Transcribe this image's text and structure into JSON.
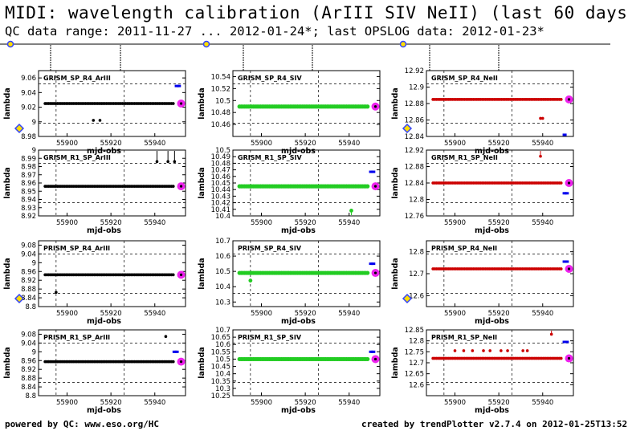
{
  "header": {
    "title": "MIDI: wavelength calibration (ArIII SIV NeII) (last 60 days)",
    "subtitle": "QC data range: 2011-11-27 ... 2012-01-24*; last OPSLOG data: 2012-01-23*"
  },
  "footer": {
    "left": "powered by QC: www.eso.org/HC",
    "right": "created by trendPlotter v2.7.4 on 2012-01-25T13:52:09"
  },
  "colors": {
    "arIII": "#000000",
    "siv": "#22cc22",
    "neII": "#cc0000",
    "latest": "#ee22ee",
    "outlier": "#0000ee",
    "marker": "#3344ff"
  },
  "chart_data": [
    {
      "type": "scatter",
      "title": "GRISM_SP_R4_ArIII",
      "xlabel": "mjd-obs",
      "ylabel": "lambda",
      "xlim": [
        55887,
        55954
      ],
      "ylim": [
        8.98,
        9.07
      ],
      "yticks": [
        "8.98",
        "9",
        "9.02",
        "9.04",
        "9.06"
      ],
      "xticks": [
        "55900",
        "55920",
        "55940"
      ],
      "level": 9.025,
      "latest": [
        55952,
        9.025
      ],
      "outliers": [
        [
          55950,
          9.049
        ],
        [
          55951,
          9.049
        ]
      ],
      "extras": [
        [
          55912,
          9.002
        ],
        [
          55915,
          9.002
        ]
      ],
      "color": "#000000"
    },
    {
      "type": "scatter",
      "title": "GRISM_SP_R4_SIV",
      "xlabel": "mjd-obs",
      "ylabel": "lambda",
      "xlim": [
        55887,
        55954
      ],
      "ylim": [
        10.44,
        10.55
      ],
      "yticks": [
        "10.46",
        "10.48",
        "10.5",
        "10.52",
        "10.54"
      ],
      "xticks": [
        "55900",
        "55920",
        "55940"
      ],
      "level": 10.49,
      "latest": [
        55952,
        10.49
      ],
      "outliers": [],
      "extras": [],
      "color": "#22cc22"
    },
    {
      "type": "scatter",
      "title": "GRISM_SP_R4_NeII",
      "xlabel": "mjd-obs",
      "ylabel": "lambda",
      "xlim": [
        55887,
        55954
      ],
      "ylim": [
        12.84,
        12.92
      ],
      "yticks": [
        "12.84",
        "12.86",
        "12.88",
        "12.9",
        "12.92"
      ],
      "xticks": [
        "55900",
        "55920",
        "55940"
      ],
      "level": 12.885,
      "latest": [
        55952,
        12.885
      ],
      "outliers": [
        [
          55950,
          12.842
        ]
      ],
      "extras": [
        [
          55939,
          12.862
        ],
        [
          55940,
          12.862
        ]
      ],
      "color": "#cc0000"
    },
    {
      "type": "scatter",
      "title": "GRISM_R1_SP_ArIII",
      "xlabel": "mjd-obs",
      "ylabel": "lambda",
      "xlim": [
        55887,
        55954
      ],
      "ylim": [
        8.92,
        9.0
      ],
      "yticks": [
        "8.92",
        "8.93",
        "8.94",
        "8.95",
        "8.96",
        "8.97",
        "8.98",
        "8.99",
        "9"
      ],
      "xticks": [
        "55900",
        "55920",
        "55940"
      ],
      "level": 8.956,
      "latest": [
        55952,
        8.956
      ],
      "outliers": [],
      "extras": [
        [
          55941,
          8.986
        ],
        [
          55946,
          8.986
        ],
        [
          55949,
          8.986
        ]
      ],
      "color": "#000000"
    },
    {
      "type": "scatter",
      "title": "GRISM_R1_SP_SIV",
      "xlabel": "mjd-obs",
      "ylabel": "lambda",
      "xlim": [
        55887,
        55954
      ],
      "ylim": [
        10.4,
        10.5
      ],
      "yticks": [
        "10.4",
        "10.41",
        "10.42",
        "10.43",
        "10.44",
        "10.45",
        "10.46",
        "10.47",
        "10.48",
        "10.49",
        "10.5"
      ],
      "xticks": [
        "55900",
        "55920",
        "55940"
      ],
      "level": 10.445,
      "latest": [
        55952,
        10.445
      ],
      "outliers": [
        [
          55950,
          10.467
        ],
        [
          55951,
          10.467
        ]
      ],
      "extras": [
        [
          55941,
          10.408
        ]
      ],
      "color": "#22cc22"
    },
    {
      "type": "scatter",
      "title": "GRISM_R1_SP_NeII",
      "xlabel": "mjd-obs",
      "ylabel": "lambda",
      "xlim": [
        55887,
        55954
      ],
      "ylim": [
        12.76,
        12.92
      ],
      "yticks": [
        "12.76",
        "12.8",
        "12.84",
        "12.88",
        "12.92"
      ],
      "xticks": [
        "55900",
        "55920",
        "55940"
      ],
      "level": 12.84,
      "latest": [
        55952,
        12.84
      ],
      "outliers": [
        [
          55950,
          12.815
        ],
        [
          55951,
          12.815
        ]
      ],
      "extras": [
        [
          55939,
          12.905
        ]
      ],
      "color": "#cc0000"
    },
    {
      "type": "scatter",
      "title": "PRISM_SP_R4_ArIII",
      "xlabel": "mjd-obs",
      "ylabel": "lambda",
      "xlim": [
        55887,
        55954
      ],
      "ylim": [
        8.8,
        9.1
      ],
      "yticks": [
        "8.8",
        "8.84",
        "8.88",
        "8.92",
        "8.96",
        "9",
        "9.04",
        "9.08"
      ],
      "xticks": [
        "55900",
        "55920",
        "55940"
      ],
      "level": 8.945,
      "latest": [
        55952,
        8.945
      ],
      "outliers": [],
      "extras": [
        [
          55895,
          8.865
        ]
      ],
      "color": "#000000"
    },
    {
      "type": "scatter",
      "title": "PRISM_SP_R4_SIV",
      "xlabel": "mjd-obs",
      "ylabel": "lambda",
      "xlim": [
        55887,
        55954
      ],
      "ylim": [
        10.27,
        10.7
      ],
      "yticks": [
        "10.3",
        "10.4",
        "10.5",
        "10.6",
        "10.7"
      ],
      "xticks": [
        "55900",
        "55920",
        "55940"
      ],
      "level": 10.49,
      "latest": [
        55952,
        10.49
      ],
      "outliers": [
        [
          55950,
          10.55
        ],
        [
          55951,
          10.55
        ]
      ],
      "extras": [
        [
          55895,
          10.44
        ]
      ],
      "color": "#22cc22"
    },
    {
      "type": "scatter",
      "title": "PRISM_SP_R4_NeII",
      "xlabel": "mjd-obs",
      "ylabel": "lambda",
      "xlim": [
        55887,
        55954
      ],
      "ylim": [
        12.55,
        12.85
      ],
      "yticks": [
        "12.6",
        "12.7",
        "12.8"
      ],
      "xticks": [
        "55900",
        "55920",
        "55940"
      ],
      "level": 12.722,
      "latest": [
        55952,
        12.722
      ],
      "outliers": [
        [
          55950,
          12.755
        ],
        [
          55951,
          12.755
        ]
      ],
      "extras": [],
      "color": "#cc0000"
    },
    {
      "type": "scatter",
      "title": "PRISM_R1_SP_ArIII",
      "xlabel": "mjd-obs",
      "ylabel": "lambda",
      "xlim": [
        55887,
        55954
      ],
      "ylim": [
        8.8,
        9.1
      ],
      "yticks": [
        "8.8",
        "8.84",
        "8.88",
        "8.92",
        "8.96",
        "9",
        "9.04",
        "9.08"
      ],
      "xticks": [
        "55900",
        "55920",
        "55940"
      ],
      "level": 8.955,
      "latest": [
        55952,
        8.955
      ],
      "outliers": [
        [
          55949,
          9.0
        ],
        [
          55950,
          9.0
        ]
      ],
      "extras": [
        [
          55945,
          9.07
        ]
      ],
      "color": "#000000"
    },
    {
      "type": "scatter",
      "title": "PRISM_R1_SP_SIV",
      "xlabel": "mjd-obs",
      "ylabel": "lambda",
      "xlim": [
        55887,
        55954
      ],
      "ylim": [
        10.25,
        10.7
      ],
      "yticks": [
        "10.25",
        "10.3",
        "10.35",
        "10.4",
        "10.45",
        "10.5",
        "10.55",
        "10.6",
        "10.65",
        "10.7"
      ],
      "xticks": [
        "55900",
        "55920",
        "55940"
      ],
      "level": 10.5,
      "latest": [
        55952,
        10.5
      ],
      "outliers": [
        [
          55950,
          10.55
        ],
        [
          55951,
          10.55
        ]
      ],
      "extras": [],
      "color": "#22cc22"
    },
    {
      "type": "scatter",
      "title": "PRISM_R1_SP_NeII",
      "xlabel": "mjd-obs",
      "ylabel": "lambda",
      "xlim": [
        55887,
        55954
      ],
      "ylim": [
        12.55,
        12.85
      ],
      "yticks": [
        "12.6",
        "12.65",
        "12.7",
        "12.75",
        "12.8",
        "12.85"
      ],
      "xticks": [
        "55900",
        "55920",
        "55940"
      ],
      "level": 12.72,
      "latest": [
        55952,
        12.72
      ],
      "outliers": [
        [
          55950,
          12.795
        ],
        [
          55951,
          12.795
        ]
      ],
      "extras": [
        [
          55900,
          12.755
        ],
        [
          55904,
          12.755
        ],
        [
          55908,
          12.755
        ],
        [
          55913,
          12.755
        ],
        [
          55916,
          12.755
        ],
        [
          55921,
          12.755
        ],
        [
          55924,
          12.755
        ],
        [
          55931,
          12.755
        ],
        [
          55933,
          12.755
        ],
        [
          55944,
          12.83
        ]
      ],
      "color": "#cc0000"
    }
  ]
}
